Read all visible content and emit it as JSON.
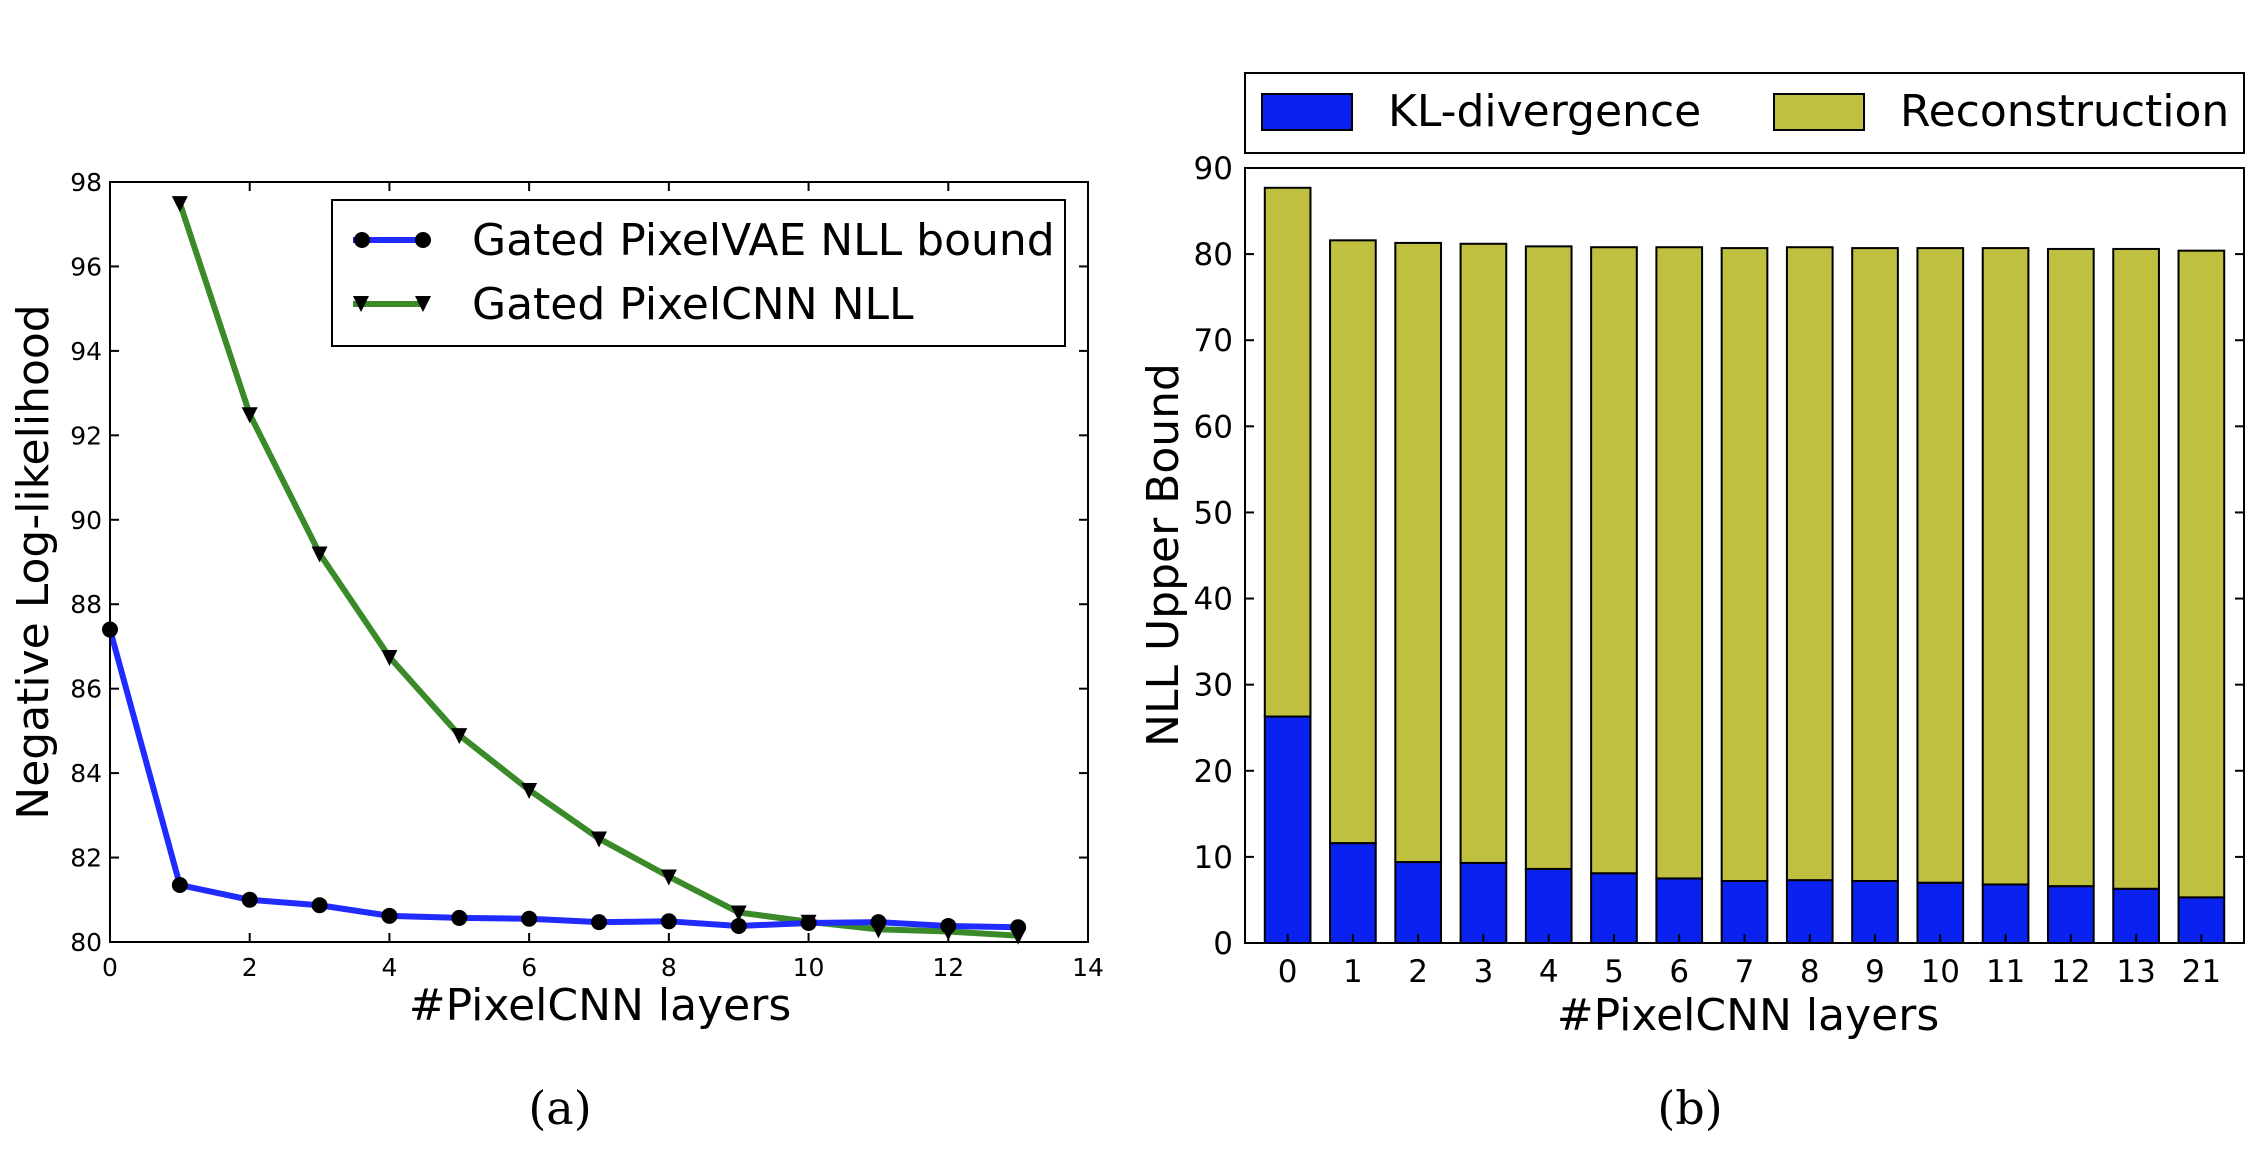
{
  "chart_data": [
    {
      "type": "line",
      "caption": "(a)",
      "xlabel": "#PixelCNN layers",
      "ylabel": "Negative Log-likelihood",
      "xlim": [
        0,
        14
      ],
      "ylim": [
        80,
        98
      ],
      "xticks": [
        0,
        2,
        4,
        6,
        8,
        10,
        12,
        14
      ],
      "yticks": [
        80,
        82,
        84,
        86,
        88,
        90,
        92,
        94,
        96,
        98
      ],
      "grid": false,
      "legend": "top-right",
      "series": [
        {
          "name": "Gated PixelVAE NLL bound",
          "color": "#1f2bff",
          "marker": "circle",
          "x": [
            0,
            1,
            2,
            3,
            4,
            5,
            6,
            7,
            8,
            9,
            10,
            11,
            12,
            13
          ],
          "y": [
            87.4,
            81.35,
            81.0,
            80.87,
            80.62,
            80.57,
            80.55,
            80.47,
            80.49,
            80.38,
            80.45,
            80.47,
            80.38,
            80.35
          ]
        },
        {
          "name": "Gated PixelCNN NLL",
          "color": "#3a8a2a",
          "marker": "triangle-down",
          "x": [
            1,
            2,
            3,
            4,
            5,
            6,
            7,
            8,
            9,
            10,
            11,
            12,
            13
          ],
          "y": [
            97.5,
            92.5,
            89.2,
            86.75,
            84.9,
            83.6,
            82.45,
            81.55,
            80.7,
            80.48,
            80.3,
            80.25,
            80.15
          ]
        }
      ]
    },
    {
      "type": "bar",
      "stacked": true,
      "caption": "(b)",
      "xlabel": "#PixelCNN layers",
      "ylabel": "NLL Upper Bound",
      "ylim": [
        0,
        90
      ],
      "yticks": [
        0,
        10,
        20,
        30,
        40,
        50,
        60,
        70,
        80,
        90
      ],
      "grid": false,
      "legend": "top, above plot",
      "categories": [
        "0",
        "1",
        "2",
        "3",
        "4",
        "5",
        "6",
        "7",
        "8",
        "9",
        "10",
        "11",
        "12",
        "13",
        "21"
      ],
      "series": [
        {
          "name": "KL-divergence",
          "color": "#0a22f0",
          "values": [
            26.3,
            11.6,
            9.4,
            9.3,
            8.6,
            8.1,
            7.5,
            7.2,
            7.3,
            7.2,
            7.0,
            6.8,
            6.6,
            6.3,
            5.3
          ]
        },
        {
          "name": "Reconstruction",
          "color": "#bfbf40",
          "values": [
            61.4,
            70.0,
            71.9,
            71.9,
            72.3,
            72.7,
            73.3,
            73.5,
            73.5,
            73.5,
            73.7,
            73.9,
            74.0,
            74.3,
            75.1
          ]
        }
      ]
    }
  ]
}
